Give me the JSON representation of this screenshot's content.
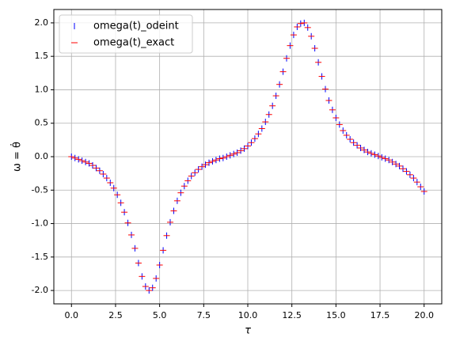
{
  "chart_data": {
    "type": "scatter",
    "xlabel": "τ",
    "ylabel": "ω = θ̇",
    "x": [
      0,
      0.2,
      0.4,
      0.6,
      0.8,
      1,
      1.2,
      1.4,
      1.6,
      1.8,
      2,
      2.2,
      2.4,
      2.6,
      2.8,
      3,
      3.2,
      3.4,
      3.6,
      3.8,
      4,
      4.2,
      4.4,
      4.6,
      4.8,
      5,
      5.2,
      5.4,
      5.6,
      5.8,
      6,
      6.2,
      6.4,
      6.6,
      6.8,
      7,
      7.2,
      7.4,
      7.6,
      7.8,
      8,
      8.2,
      8.4,
      8.6,
      8.8,
      9,
      9.2,
      9.4,
      9.6,
      9.8,
      10,
      10.2,
      10.4,
      10.6,
      10.8,
      11,
      11.2,
      11.4,
      11.6,
      11.8,
      12,
      12.2,
      12.4,
      12.6,
      12.8,
      13,
      13.2,
      13.4,
      13.6,
      13.8,
      14,
      14.2,
      14.4,
      14.6,
      14.8,
      15,
      15.2,
      15.4,
      15.6,
      15.8,
      16,
      16.2,
      16.4,
      16.6,
      16.8,
      17,
      17.2,
      17.4,
      17.6,
      17.8,
      18,
      18.2,
      18.4,
      18.6,
      18.8,
      19,
      19.2,
      19.4,
      19.6,
      19.8,
      20
    ],
    "series": [
      {
        "name": "omega(t)_odeint",
        "color": "#0000ff",
        "marker": "|",
        "values": [
          0,
          -0.02,
          -0.04,
          -0.06,
          -0.08,
          -0.1,
          -0.13,
          -0.17,
          -0.21,
          -0.26,
          -0.32,
          -0.39,
          -0.47,
          -0.57,
          -0.69,
          -0.83,
          -0.99,
          -1.17,
          -1.37,
          -1.59,
          -1.79,
          -1.94,
          -2,
          -1.96,
          -1.82,
          -1.62,
          -1.4,
          -1.18,
          -0.98,
          -0.81,
          -0.66,
          -0.54,
          -0.44,
          -0.36,
          -0.29,
          -0.24,
          -0.19,
          -0.15,
          -0.12,
          -0.09,
          -0.07,
          -0.05,
          -0.03,
          -0.02,
          0,
          0.02,
          0.04,
          0.06,
          0.09,
          0.12,
          0.16,
          0.21,
          0.27,
          0.34,
          0.42,
          0.52,
          0.63,
          0.76,
          0.91,
          1.08,
          1.27,
          1.47,
          1.66,
          1.82,
          1.94,
          1.99,
          2,
          1.93,
          1.8,
          1.62,
          1.41,
          1.2,
          1.01,
          0.84,
          0.7,
          0.58,
          0.48,
          0.39,
          0.32,
          0.26,
          0.21,
          0.17,
          0.13,
          0.1,
          0.07,
          0.05,
          0.03,
          0.01,
          -0.01,
          -0.03,
          -0.05,
          -0.08,
          -0.11,
          -0.14,
          -0.18,
          -0.22,
          -0.27,
          -0.32,
          -0.38,
          -0.45,
          -0.52
        ]
      },
      {
        "name": "omega(t)_exact",
        "color": "#ff0000",
        "marker": "_",
        "values": [
          0,
          -0.02,
          -0.04,
          -0.06,
          -0.08,
          -0.1,
          -0.13,
          -0.17,
          -0.21,
          -0.26,
          -0.32,
          -0.39,
          -0.47,
          -0.57,
          -0.69,
          -0.83,
          -0.99,
          -1.17,
          -1.37,
          -1.59,
          -1.79,
          -1.94,
          -2,
          -1.96,
          -1.82,
          -1.62,
          -1.4,
          -1.18,
          -0.98,
          -0.81,
          -0.66,
          -0.54,
          -0.44,
          -0.36,
          -0.29,
          -0.24,
          -0.19,
          -0.15,
          -0.12,
          -0.09,
          -0.07,
          -0.05,
          -0.03,
          -0.02,
          0,
          0.02,
          0.04,
          0.06,
          0.09,
          0.12,
          0.16,
          0.21,
          0.27,
          0.34,
          0.42,
          0.52,
          0.63,
          0.76,
          0.91,
          1.08,
          1.27,
          1.47,
          1.66,
          1.82,
          1.94,
          1.99,
          2,
          1.93,
          1.8,
          1.62,
          1.41,
          1.2,
          1.01,
          0.84,
          0.7,
          0.58,
          0.48,
          0.39,
          0.32,
          0.26,
          0.21,
          0.17,
          0.13,
          0.1,
          0.07,
          0.05,
          0.03,
          0.01,
          -0.01,
          -0.03,
          -0.05,
          -0.08,
          -0.11,
          -0.14,
          -0.18,
          -0.22,
          -0.27,
          -0.32,
          -0.38,
          -0.45,
          -0.52
        ]
      }
    ],
    "xlim": [
      -1,
      21
    ],
    "xticks": [
      {
        "value": 0,
        "label": "0.0"
      },
      {
        "value": 2.5,
        "label": "2.5"
      },
      {
        "value": 5,
        "label": "5.0"
      },
      {
        "value": 7.5,
        "label": "7.5"
      },
      {
        "value": 10,
        "label": "10.0"
      },
      {
        "value": 12.5,
        "label": "12.5"
      },
      {
        "value": 15,
        "label": "15.0"
      },
      {
        "value": 17.5,
        "label": "17.5"
      },
      {
        "value": 20,
        "label": "20.0"
      }
    ],
    "ylim": [
      -2.2,
      2.2
    ],
    "yticks": [
      {
        "value": -2,
        "label": "-2.0"
      },
      {
        "value": -1.5,
        "label": "-1.5"
      },
      {
        "value": -1,
        "label": "-1.0"
      },
      {
        "value": -0.5,
        "label": "-0.5"
      },
      {
        "value": 0,
        "label": "0.0"
      },
      {
        "value": 0.5,
        "label": "0.5"
      },
      {
        "value": 1,
        "label": "1.0"
      },
      {
        "value": 1.5,
        "label": "1.5"
      },
      {
        "value": 2,
        "label": "2.0"
      }
    ],
    "grid": true,
    "legend": "upper-left"
  }
}
